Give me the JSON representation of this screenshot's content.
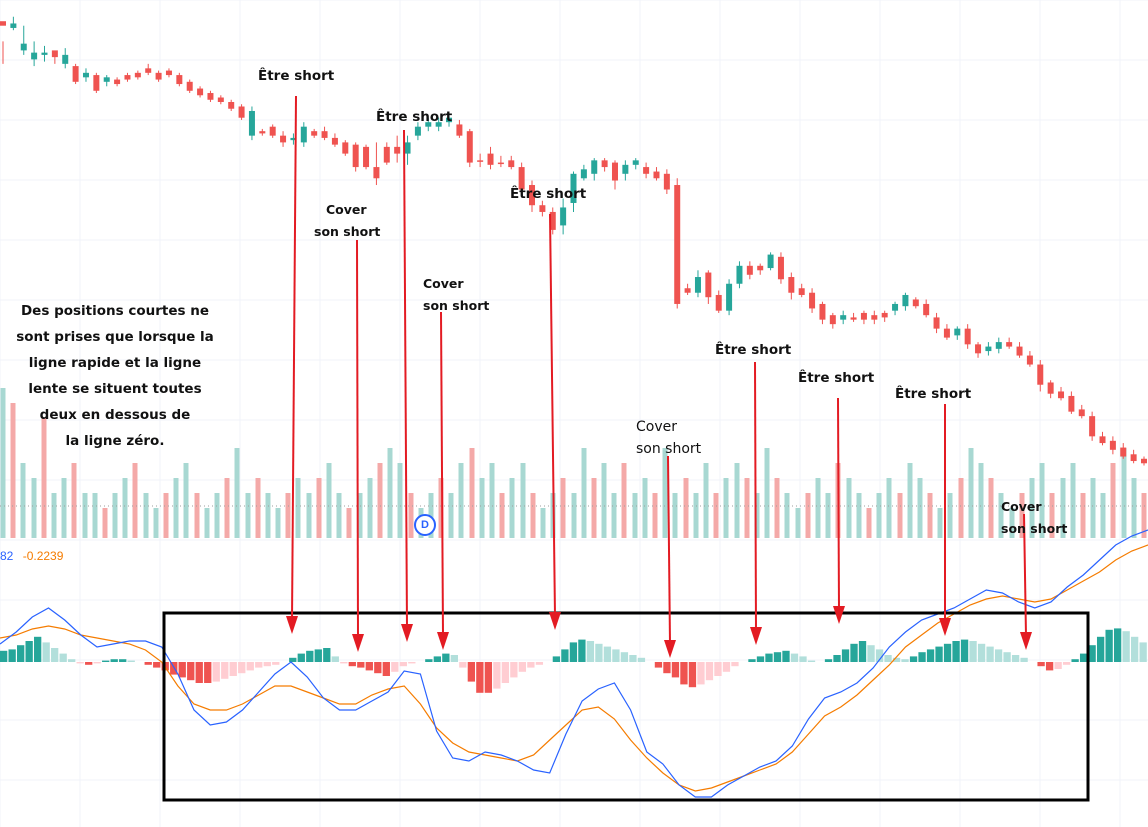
{
  "chart_data": [
    {
      "type": "candlestick",
      "title": "",
      "colors": {
        "up": "#26a69a",
        "down": "#ef5350"
      },
      "grid": true,
      "candles_ohlc": [
        [
          10,
          14,
          28,
          48
        ],
        [
          16,
          12,
          6,
          18
        ],
        [
          36,
          30,
          14,
          40
        ],
        [
          44,
          38,
          28,
          50
        ],
        [
          40,
          38,
          32,
          46
        ],
        [
          36,
          42,
          38,
          48
        ],
        [
          48,
          40,
          34,
          52
        ],
        [
          50,
          64,
          66,
          48
        ],
        [
          60,
          56,
          52,
          64
        ],
        [
          58,
          72,
          74,
          56
        ],
        [
          64,
          60,
          58,
          68
        ],
        [
          62,
          66,
          68,
          60
        ],
        [
          58,
          62,
          64,
          56
        ],
        [
          56,
          60,
          62,
          54
        ],
        [
          52,
          56,
          58,
          48
        ],
        [
          56,
          62,
          64,
          54
        ],
        [
          54,
          58,
          60,
          52
        ],
        [
          58,
          66,
          68,
          56
        ],
        [
          64,
          72,
          74,
          62
        ],
        [
          70,
          76,
          78,
          68
        ],
        [
          74,
          80,
          82,
          72
        ],
        [
          78,
          82,
          84,
          76
        ],
        [
          82,
          88,
          90,
          80
        ],
        [
          86,
          96,
          98,
          84
        ],
        [
          112,
          90,
          86,
          116
        ],
        [
          108,
          110,
          112,
          106
        ],
        [
          104,
          112,
          114,
          102
        ],
        [
          112,
          118,
          122,
          108
        ],
        [
          116,
          114,
          110,
          120
        ],
        [
          118,
          104,
          100,
          122
        ],
        [
          108,
          112,
          114,
          106
        ],
        [
          108,
          114,
          116,
          104
        ],
        [
          114,
          120,
          122,
          110
        ],
        [
          118,
          128,
          130,
          116
        ],
        [
          120,
          140,
          144,
          118
        ],
        [
          122,
          140,
          142,
          120
        ],
        [
          140,
          150,
          156,
          118
        ],
        [
          122,
          136,
          138,
          118
        ],
        [
          122,
          128,
          136,
          112
        ],
        [
          128,
          118,
          112,
          138
        ],
        [
          112,
          104,
          100,
          116
        ],
        [
          104,
          100,
          96,
          108
        ],
        [
          104,
          100,
          96,
          108
        ],
        [
          100,
          96,
          92,
          104
        ],
        [
          102,
          112,
          114,
          98
        ],
        [
          108,
          136,
          140,
          106
        ],
        [
          134,
          134,
          140,
          128
        ],
        [
          128,
          138,
          142,
          122
        ],
        [
          136,
          136,
          140,
          130
        ],
        [
          134,
          140,
          142,
          130
        ],
        [
          140,
          160,
          166,
          136
        ],
        [
          156,
          174,
          180,
          152
        ],
        [
          174,
          180,
          184,
          170
        ],
        [
          180,
          196,
          200,
          176
        ],
        [
          192,
          176,
          168,
          200
        ],
        [
          172,
          146,
          144,
          180
        ],
        [
          150,
          142,
          138,
          152
        ],
        [
          146,
          134,
          132,
          152
        ],
        [
          134,
          140,
          144,
          132
        ],
        [
          136,
          152,
          160,
          134
        ],
        [
          146,
          138,
          134,
          152
        ],
        [
          138,
          134,
          132,
          142
        ],
        [
          140,
          146,
          150,
          136
        ],
        [
          144,
          150,
          152,
          140
        ],
        [
          146,
          160,
          164,
          142
        ],
        [
          156,
          262,
          266,
          150
        ],
        [
          248,
          252,
          254,
          244
        ],
        [
          252,
          238,
          232,
          256
        ],
        [
          234,
          256,
          262,
          232
        ],
        [
          254,
          268,
          270,
          250
        ],
        [
          268,
          244,
          240,
          272
        ],
        [
          244,
          228,
          224,
          248
        ],
        [
          228,
          236,
          240,
          224
        ],
        [
          228,
          232,
          236,
          226
        ],
        [
          230,
          218,
          216,
          232
        ],
        [
          220,
          240,
          244,
          216
        ],
        [
          238,
          252,
          258,
          234
        ],
        [
          248,
          254,
          256,
          244
        ],
        [
          252,
          266,
          270,
          248
        ],
        [
          262,
          276,
          280,
          260
        ],
        [
          272,
          280,
          284,
          270
        ],
        [
          276,
          272,
          268,
          280
        ],
        [
          274,
          276,
          278,
          270
        ],
        [
          270,
          276,
          280,
          268
        ],
        [
          272,
          276,
          280,
          268
        ],
        [
          270,
          274,
          278,
          268
        ],
        [
          268,
          262,
          260,
          272
        ],
        [
          264,
          254,
          252,
          268
        ],
        [
          258,
          264,
          266,
          256
        ],
        [
          262,
          272,
          274,
          258
        ],
        [
          274,
          284,
          288,
          270
        ],
        [
          284,
          292,
          294,
          280
        ],
        [
          290,
          284,
          282,
          294
        ],
        [
          284,
          298,
          302,
          280
        ],
        [
          298,
          306,
          310,
          296
        ],
        [
          304,
          300,
          296,
          308
        ],
        [
          302,
          296,
          292,
          306
        ],
        [
          296,
          300,
          302,
          292
        ],
        [
          300,
          308,
          310,
          296
        ],
        [
          308,
          316,
          318,
          304
        ],
        [
          316,
          334,
          340,
          312
        ],
        [
          332,
          342,
          346,
          330
        ],
        [
          340,
          346,
          348,
          336
        ],
        [
          344,
          358,
          360,
          340
        ],
        [
          356,
          362,
          364,
          352
        ],
        [
          362,
          380,
          384,
          358
        ],
        [
          380,
          386,
          388,
          376
        ],
        [
          384,
          392,
          396,
          380
        ],
        [
          390,
          398,
          400,
          386
        ],
        [
          396,
          402,
          404,
          392
        ],
        [
          400,
          404,
          406,
          398
        ]
      ],
      "volume": [
        1.0,
        0.9,
        0.5,
        0.4,
        0.8,
        0.3,
        0.4,
        0.5,
        0.3,
        0.3,
        0.2,
        0.3,
        0.4,
        0.5,
        0.3,
        0.2,
        0.3,
        0.4,
        0.5,
        0.3,
        0.2,
        0.3,
        0.4,
        0.6,
        0.3,
        0.4,
        0.3,
        0.2,
        0.3,
        0.4,
        0.3,
        0.4,
        0.5,
        0.3,
        0.2,
        0.3,
        0.4,
        0.5,
        0.6,
        0.5,
        0.3,
        0.2,
        0.3,
        0.4,
        0.3,
        0.5,
        0.6,
        0.4,
        0.5,
        0.3,
        0.4,
        0.5,
        0.3,
        0.2,
        0.3,
        0.4,
        0.3,
        0.6,
        0.4,
        0.5,
        0.3,
        0.5,
        0.3,
        0.4,
        0.3,
        0.6,
        0.3,
        0.4,
        0.3,
        0.5,
        0.3,
        0.4,
        0.5,
        0.4,
        0.3,
        0.6,
        0.4,
        0.3,
        0.2,
        0.3,
        0.4,
        0.3,
        0.5,
        0.4,
        0.3,
        0.2,
        0.3,
        0.4,
        0.3,
        0.5,
        0.4,
        0.3,
        0.2,
        0.3,
        0.4,
        0.6,
        0.5,
        0.4,
        0.3,
        0.2,
        0.3,
        0.4,
        0.5,
        0.3,
        0.4,
        0.5,
        0.3,
        0.4,
        0.3,
        0.5,
        0.6,
        0.4,
        0.3
      ],
      "xlabel": "",
      "ylabel": ""
    },
    {
      "type": "bar",
      "title": "",
      "values_label": [
        "82",
        "-0.2239"
      ],
      "colors": {
        "fast": "#2962ff",
        "slow": "#f57c00",
        "hist_pos_strong": "#26a69a",
        "hist_pos_weak": "#b2dfdb",
        "hist_neg_strong": "#ef5350",
        "hist_neg_weak": "#ffcdd2"
      },
      "histogram": [
        0.8,
        0.9,
        1.2,
        1.5,
        1.8,
        1.4,
        1.0,
        0.6,
        0.2,
        -0.1,
        -0.2,
        -0.1,
        0.1,
        0.2,
        0.2,
        0.1,
        0.0,
        -0.2,
        -0.4,
        -0.6,
        -0.9,
        -1.1,
        -1.3,
        -1.5,
        -1.5,
        -1.4,
        -1.2,
        -1.0,
        -0.8,
        -0.6,
        -0.4,
        -0.3,
        -0.2,
        0.0,
        0.3,
        0.6,
        0.8,
        0.9,
        1.0,
        0.4,
        -0.1,
        -0.3,
        -0.4,
        -0.6,
        -0.8,
        -1.0,
        -0.7,
        -0.3,
        -0.1,
        0.0,
        0.2,
        0.4,
        0.6,
        0.5,
        -0.4,
        -1.4,
        -2.2,
        -2.2,
        -1.9,
        -1.5,
        -1.1,
        -0.7,
        -0.4,
        -0.2,
        0.0,
        0.4,
        0.9,
        1.4,
        1.6,
        1.5,
        1.3,
        1.1,
        0.9,
        0.7,
        0.5,
        0.3,
        0.0,
        -0.4,
        -0.8,
        -1.1,
        -1.6,
        -1.8,
        -1.6,
        -1.3,
        -1.0,
        -0.7,
        -0.3,
        0.0,
        0.2,
        0.4,
        0.6,
        0.7,
        0.8,
        0.6,
        0.4,
        0.1,
        0.0,
        0.2,
        0.5,
        0.9,
        1.3,
        1.5,
        1.2,
        0.9,
        0.5,
        0.3,
        0.2,
        0.4,
        0.7,
        0.9,
        1.1,
        1.3,
        1.5,
        1.6,
        1.5,
        1.3,
        1.1,
        0.9,
        0.7,
        0.5,
        0.3,
        0.0,
        -0.3,
        -0.6,
        -0.5,
        -0.2,
        0.2,
        0.6,
        1.2,
        1.8,
        2.3,
        2.4,
        2.2,
        1.8,
        1.4
      ],
      "fast_line": [
        0.6,
        1.0,
        1.5,
        1.8,
        1.4,
        0.9,
        0.5,
        0.6,
        0.7,
        0.7,
        0.5,
        -0.4,
        -1.6,
        -2.1,
        -2.0,
        -1.6,
        -1.0,
        -0.4,
        0.0,
        -0.5,
        -1.2,
        -1.6,
        -1.6,
        -1.3,
        -1.0,
        -0.3,
        -0.4,
        -2.3,
        -3.2,
        -3.3,
        -3.0,
        -3.1,
        -3.3,
        -3.6,
        -3.7,
        -2.4,
        -1.3,
        -0.9,
        -0.7,
        -1.6,
        -3.0,
        -3.4,
        -4.1,
        -4.5,
        -4.5,
        -4.1,
        -3.8,
        -3.5,
        -3.3,
        -2.8,
        -1.9,
        -1.2,
        -1.0,
        -0.7,
        -0.2,
        0.5,
        1.0,
        1.4,
        1.6,
        1.8,
        2.1,
        2.4,
        2.3,
        2.0,
        1.8,
        2.0,
        2.5,
        2.9,
        3.4,
        3.9,
        4.2,
        4.4
      ],
      "slow_line": [
        0.8,
        0.9,
        1.1,
        1.2,
        1.1,
        0.9,
        0.8,
        0.7,
        0.6,
        0.4,
        0.0,
        -0.8,
        -1.4,
        -1.6,
        -1.6,
        -1.4,
        -1.1,
        -0.8,
        -0.8,
        -1.0,
        -1.2,
        -1.4,
        -1.4,
        -1.1,
        -0.9,
        -0.8,
        -1.4,
        -2.2,
        -2.7,
        -3.0,
        -3.1,
        -3.2,
        -3.3,
        -3.1,
        -2.6,
        -2.1,
        -1.6,
        -1.5,
        -1.9,
        -2.6,
        -3.2,
        -3.7,
        -4.1,
        -4.3,
        -4.2,
        -4.0,
        -3.8,
        -3.6,
        -3.4,
        -3.0,
        -2.4,
        -1.8,
        -1.5,
        -1.1,
        -0.6,
        -0.1,
        0.5,
        0.9,
        1.3,
        1.6,
        1.9,
        2.1,
        2.2,
        2.1,
        2.0,
        2.1,
        2.4,
        2.7,
        3.0,
        3.4,
        3.7,
        3.9
      ]
    }
  ],
  "annotations": {
    "short_1": "Être short",
    "short_2": "Être short",
    "short_3": "Être short",
    "short_4": "Être short",
    "short_5": "Être short",
    "short_6": "Être short",
    "cover_1a": "Cover",
    "cover_1b": "son short",
    "cover_2a": "Cover",
    "cover_2b": "son short",
    "cover_3a": "Cover",
    "cover_3b": "son short",
    "cover_4a": "Cover",
    "cover_4b": "son short",
    "side_note_lines": [
      "Des positions courtes ne",
      "sont prises que lorsque la",
      "ligne rapide et la ligne",
      "lente se situent toutes",
      "deux en dessous de",
      "la ligne zéro."
    ]
  },
  "badge": "D",
  "macd_values": {
    "fast": "82",
    "slow": "-0.2239"
  },
  "colors": {
    "arrow": "#e31b23",
    "box": "#000000",
    "grid": "#f0f3fa"
  }
}
